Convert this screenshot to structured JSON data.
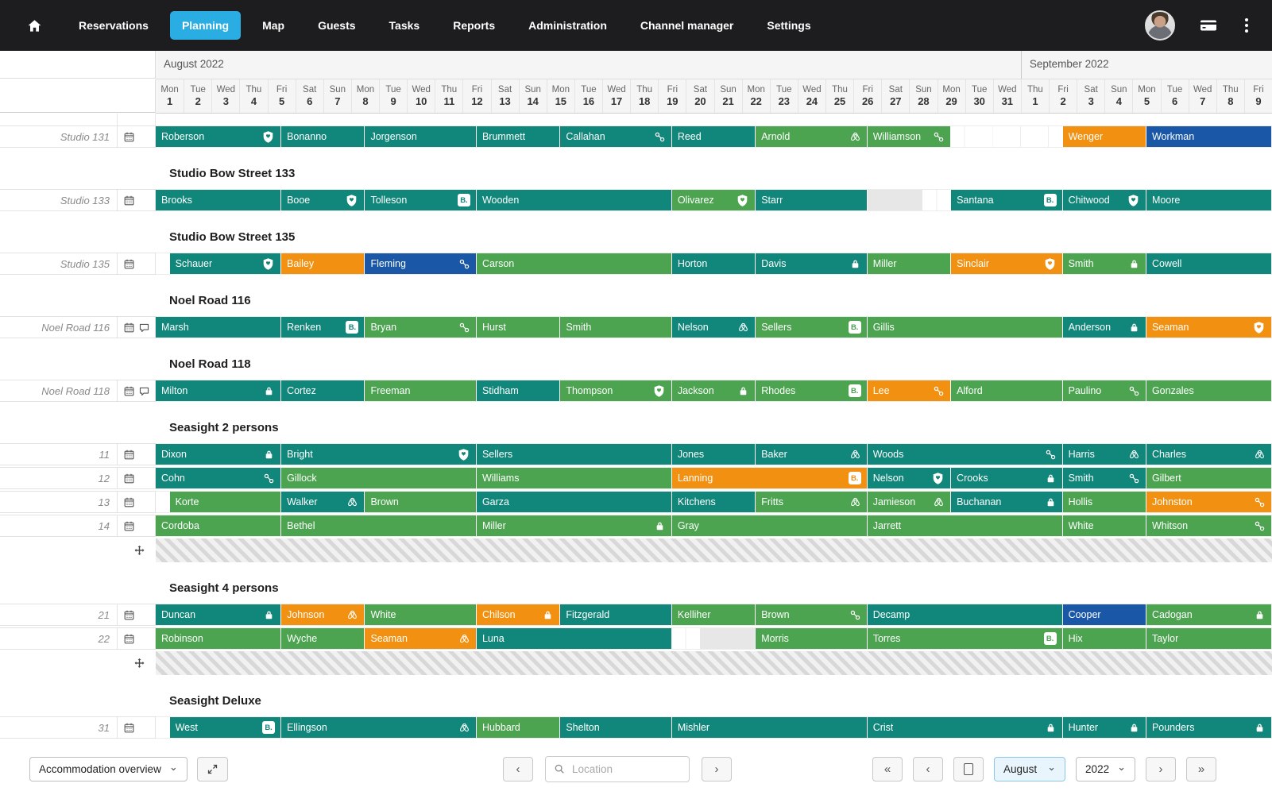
{
  "nav": {
    "items": [
      {
        "label": "Reservations",
        "active": false
      },
      {
        "label": "Planning",
        "active": true
      },
      {
        "label": "Map",
        "active": false
      },
      {
        "label": "Guests",
        "active": false
      },
      {
        "label": "Tasks",
        "active": false
      },
      {
        "label": "Reports",
        "active": false
      },
      {
        "label": "Administration",
        "active": false
      },
      {
        "label": "Channel manager",
        "active": false
      },
      {
        "label": "Settings",
        "active": false
      }
    ],
    "right_icons": [
      "user-avatar",
      "credit-card-icon",
      "kebab-menu-icon"
    ]
  },
  "colors": {
    "teal": "#11867a",
    "green": "#4ca450",
    "orange": "#f29111",
    "blue": "#1a57a6",
    "blocked": "#e7e7e7",
    "active_tab": "#29ade2",
    "navbar_bg": "#1d1d1f"
  },
  "icons": {
    "booking_badge": "B."
  },
  "calendar": {
    "months": [
      {
        "label": "August 2022",
        "days": 31
      },
      {
        "label": "September 2022",
        "days": 9
      }
    ],
    "days": [
      "Mon 1",
      "Tue 2",
      "Wed 3",
      "Thu 4",
      "Fri 5",
      "Sat 6",
      "Sun 7",
      "Mon 8",
      "Tue 9",
      "Wed 10",
      "Thu 11",
      "Fri 12",
      "Sat 13",
      "Sun 14",
      "Mon 15",
      "Tue 16",
      "Wed 17",
      "Thu 18",
      "Fri 19",
      "Sat 20",
      "Sun 21",
      "Mon 22",
      "Tue 23",
      "Wed 24",
      "Thu 25",
      "Fri 26",
      "Sat 27",
      "Sun 28",
      "Mon 29",
      "Tue 30",
      "Wed 31",
      "Thu 1",
      "Fri 2",
      "Sat 3",
      "Sun 4",
      "Mon 5",
      "Tue 6",
      "Wed 7",
      "Thu 8",
      "Fri 9"
    ]
  },
  "rows": [
    {
      "type": "spacer"
    },
    {
      "type": "unit",
      "label": "Studio 131",
      "row_icons": [
        "calendar"
      ],
      "bars": [
        [
          0,
          4.5,
          "teal",
          "Roberson",
          "shield"
        ],
        [
          4.5,
          7.5,
          "teal",
          "Bonanno",
          null
        ],
        [
          7.5,
          11.5,
          "teal",
          "Jorgenson",
          null
        ],
        [
          11.5,
          14.5,
          "teal",
          "Brummett",
          null
        ],
        [
          14.5,
          18.5,
          "teal",
          "Callahan",
          "link"
        ],
        [
          18.5,
          21.5,
          "teal",
          "Reed",
          null
        ],
        [
          21.5,
          25.5,
          "green",
          "Arnold",
          "airbnb"
        ],
        [
          25.5,
          28.5,
          "green",
          "Williamson",
          "link"
        ],
        [
          32.5,
          35.5,
          "orange",
          "Wenger",
          null
        ],
        [
          35.5,
          40,
          "blue",
          "Workman",
          null
        ]
      ]
    },
    {
      "type": "section",
      "label": "Studio Bow Street 133"
    },
    {
      "type": "unit",
      "label": "Studio 133",
      "row_icons": [
        "calendar"
      ],
      "bars": [
        [
          0,
          4.5,
          "teal",
          "Brooks",
          null
        ],
        [
          4.5,
          7.5,
          "teal",
          "Booe",
          "shield"
        ],
        [
          7.5,
          11.5,
          "teal",
          "Tolleson",
          "booking"
        ],
        [
          11.5,
          18.5,
          "teal",
          "Wooden",
          null
        ],
        [
          18.5,
          21.5,
          "green",
          "Olivarez",
          "shield"
        ],
        [
          21.5,
          25.5,
          "teal",
          "Starr",
          null
        ],
        [
          25.5,
          27.5,
          "blocked",
          "",
          null
        ],
        [
          28.5,
          32.5,
          "teal",
          "Santana",
          "booking"
        ],
        [
          32.5,
          35.5,
          "teal",
          "Chitwood",
          "shield"
        ],
        [
          35.5,
          40,
          "teal",
          "Moore",
          null
        ]
      ]
    },
    {
      "type": "section",
      "label": "Studio Bow Street 135"
    },
    {
      "type": "unit",
      "label": "Studio 135",
      "row_icons": [
        "calendar"
      ],
      "bars": [
        [
          0.5,
          4.5,
          "teal",
          "Schauer",
          "shield"
        ],
        [
          4.5,
          7.5,
          "orange",
          "Bailey",
          null
        ],
        [
          7.5,
          11.5,
          "blue",
          "Fleming",
          "link"
        ],
        [
          11.5,
          18.5,
          "green",
          "Carson",
          null
        ],
        [
          18.5,
          21.5,
          "teal",
          "Horton",
          null
        ],
        [
          21.5,
          25.5,
          "teal",
          "Davis",
          "lock"
        ],
        [
          25.5,
          28.5,
          "green",
          "Miller",
          null
        ],
        [
          28.5,
          32.5,
          "orange",
          "Sinclair",
          "shield"
        ],
        [
          32.5,
          35.5,
          "green",
          "Smith",
          "lock"
        ],
        [
          35.5,
          40,
          "teal",
          "Cowell",
          null
        ]
      ]
    },
    {
      "type": "section",
      "label": "Noel Road 116"
    },
    {
      "type": "unit",
      "label": "Noel Road 116",
      "row_icons": [
        "calendar",
        "comment"
      ],
      "bars": [
        [
          0,
          4.5,
          "teal",
          "Marsh",
          null
        ],
        [
          4.5,
          7.5,
          "teal",
          "Renken",
          "booking"
        ],
        [
          7.5,
          11.5,
          "green",
          "Bryan",
          "link"
        ],
        [
          11.5,
          14.5,
          "green",
          "Hurst",
          null
        ],
        [
          14.5,
          18.5,
          "green",
          "Smith",
          null
        ],
        [
          18.5,
          21.5,
          "teal",
          "Nelson",
          "airbnb"
        ],
        [
          21.5,
          25.5,
          "green",
          "Sellers",
          "booking"
        ],
        [
          25.5,
          32.5,
          "green",
          "Gillis",
          null
        ],
        [
          32.5,
          35.5,
          "teal",
          "Anderson",
          "lock"
        ],
        [
          35.5,
          40,
          "orange",
          "Seaman",
          "shield"
        ]
      ]
    },
    {
      "type": "section",
      "label": "Noel Road 118"
    },
    {
      "type": "unit",
      "label": "Noel Road 118",
      "row_icons": [
        "calendar",
        "comment"
      ],
      "bars": [
        [
          0,
          4.5,
          "teal",
          "Milton",
          "lock"
        ],
        [
          4.5,
          7.5,
          "teal",
          "Cortez",
          null
        ],
        [
          7.5,
          11.5,
          "green",
          "Freeman",
          null
        ],
        [
          11.5,
          14.5,
          "teal",
          "Stidham",
          null
        ],
        [
          14.5,
          18.5,
          "green",
          "Thompson",
          "shield"
        ],
        [
          18.5,
          21.5,
          "green",
          "Jackson",
          "lock"
        ],
        [
          21.5,
          25.5,
          "green",
          "Rhodes",
          "booking"
        ],
        [
          25.5,
          28.5,
          "orange",
          "Lee",
          "link"
        ],
        [
          28.5,
          32.5,
          "green",
          "Alford",
          null
        ],
        [
          32.5,
          35.5,
          "green",
          "Paulino",
          "link"
        ],
        [
          35.5,
          40,
          "green",
          "Gonzales",
          null
        ]
      ]
    },
    {
      "type": "section",
      "label": "Seasight 2 persons"
    },
    {
      "type": "unit",
      "label": "11",
      "row_icons": [
        "calendar"
      ],
      "bars": [
        [
          0,
          4.5,
          "teal",
          "Dixon",
          "lock"
        ],
        [
          4.5,
          11.5,
          "teal",
          "Bright",
          "shield"
        ],
        [
          11.5,
          18.5,
          "teal",
          "Sellers",
          null
        ],
        [
          18.5,
          21.5,
          "teal",
          "Jones",
          null
        ],
        [
          21.5,
          25.5,
          "teal",
          "Baker",
          "airbnb"
        ],
        [
          25.5,
          32.5,
          "teal",
          "Woods",
          "link"
        ],
        [
          32.5,
          35.5,
          "teal",
          "Harris",
          "airbnb"
        ],
        [
          35.5,
          40,
          "teal",
          "Charles",
          "airbnb"
        ]
      ]
    },
    {
      "type": "unit",
      "label": "12",
      "row_icons": [
        "calendar"
      ],
      "bars": [
        [
          0,
          4.5,
          "teal",
          "Cohn",
          "link"
        ],
        [
          4.5,
          11.5,
          "green",
          "Gillock",
          null
        ],
        [
          11.5,
          18.5,
          "green",
          "Williams",
          null
        ],
        [
          18.5,
          25.5,
          "orange",
          "Lanning",
          "booking"
        ],
        [
          25.5,
          28.5,
          "teal",
          "Nelson",
          "shield"
        ],
        [
          28.5,
          32.5,
          "teal",
          "Crooks",
          "lock"
        ],
        [
          32.5,
          35.5,
          "teal",
          "Smith",
          "link"
        ],
        [
          35.5,
          40,
          "green",
          "Gilbert",
          null
        ]
      ]
    },
    {
      "type": "unit",
      "label": "13",
      "row_icons": [
        "calendar"
      ],
      "bars": [
        [
          0.5,
          4.5,
          "green",
          "Korte",
          null
        ],
        [
          4.5,
          7.5,
          "teal",
          "Walker",
          "airbnb"
        ],
        [
          7.5,
          11.5,
          "green",
          "Brown",
          null
        ],
        [
          11.5,
          18.5,
          "teal",
          "Garza",
          null
        ],
        [
          18.5,
          21.5,
          "teal",
          "Kitchens",
          null
        ],
        [
          21.5,
          25.5,
          "green",
          "Fritts",
          "airbnb"
        ],
        [
          25.5,
          28.5,
          "green",
          "Jamieson",
          "airbnb"
        ],
        [
          28.5,
          32.5,
          "teal",
          "Buchanan",
          "lock"
        ],
        [
          32.5,
          35.5,
          "green",
          "Hollis",
          null
        ],
        [
          35.5,
          40,
          "orange",
          "Johnston",
          "link"
        ]
      ]
    },
    {
      "type": "unit",
      "label": "14",
      "row_icons": [
        "calendar"
      ],
      "bars": [
        [
          0,
          4.5,
          "green",
          "Cordoba",
          null
        ],
        [
          4.5,
          11.5,
          "green",
          "Bethel",
          null
        ],
        [
          11.5,
          18.5,
          "green",
          "Miller",
          "lock"
        ],
        [
          18.5,
          25.5,
          "green",
          "Gray",
          null
        ],
        [
          25.5,
          32.5,
          "green",
          "Jarrett",
          null
        ],
        [
          32.5,
          35.5,
          "green",
          "White",
          null
        ],
        [
          35.5,
          40,
          "green",
          "Whitson",
          "link"
        ]
      ]
    },
    {
      "type": "stripe"
    },
    {
      "type": "section",
      "label": "Seasight 4 persons"
    },
    {
      "type": "unit",
      "label": "21",
      "row_icons": [
        "calendar"
      ],
      "bars": [
        [
          0,
          4.5,
          "teal",
          "Duncan",
          "lock"
        ],
        [
          4.5,
          7.5,
          "orange",
          "Johnson",
          "airbnb"
        ],
        [
          7.5,
          11.5,
          "green",
          "White",
          null
        ],
        [
          11.5,
          14.5,
          "orange",
          "Chilson",
          "lock"
        ],
        [
          14.5,
          18.5,
          "teal",
          "Fitzgerald",
          null
        ],
        [
          18.5,
          21.5,
          "green",
          "Kelliher",
          null
        ],
        [
          21.5,
          25.5,
          "green",
          "Brown",
          "link"
        ],
        [
          25.5,
          32.5,
          "teal",
          "Decamp",
          null
        ],
        [
          32.5,
          35.5,
          "blue",
          "Cooper",
          null
        ],
        [
          35.5,
          40,
          "green",
          "Cadogan",
          "lock"
        ]
      ]
    },
    {
      "type": "unit",
      "label": "22",
      "row_icons": [
        "calendar"
      ],
      "bars": [
        [
          0,
          4.5,
          "green",
          "Robinson",
          null
        ],
        [
          4.5,
          7.5,
          "green",
          "Wyche",
          null
        ],
        [
          7.5,
          11.5,
          "orange",
          "Seaman",
          "airbnb"
        ],
        [
          11.5,
          18.5,
          "teal",
          "Luna",
          null
        ],
        [
          19.5,
          21.5,
          "blocked",
          "",
          null
        ],
        [
          21.5,
          25.5,
          "green",
          "Morris",
          null
        ],
        [
          25.5,
          32.5,
          "green",
          "Torres",
          "booking"
        ],
        [
          32.5,
          35.5,
          "green",
          "Hix",
          null
        ],
        [
          35.5,
          40,
          "green",
          "Taylor",
          null
        ]
      ]
    },
    {
      "type": "stripe"
    },
    {
      "type": "section",
      "label": "Seasight Deluxe"
    },
    {
      "type": "unit",
      "label": "31",
      "row_icons": [
        "calendar"
      ],
      "bars": [
        [
          0.5,
          4.5,
          "teal",
          "West",
          "booking"
        ],
        [
          4.5,
          11.5,
          "teal",
          "Ellingson",
          "airbnb"
        ],
        [
          11.5,
          14.5,
          "green",
          "Hubbard",
          null
        ],
        [
          14.5,
          18.5,
          "teal",
          "Shelton",
          null
        ],
        [
          18.5,
          25.5,
          "teal",
          "Mishler",
          null
        ],
        [
          25.5,
          32.5,
          "teal",
          "Crist",
          "lock"
        ],
        [
          32.5,
          35.5,
          "teal",
          "Hunter",
          "lock"
        ],
        [
          35.5,
          40,
          "teal",
          "Pounders",
          "lock"
        ]
      ]
    }
  ],
  "toolbar": {
    "view_select": "Accommodation overview",
    "location_placeholder": "Location",
    "month_select": "August",
    "year_select": "2022",
    "nav_icons": {
      "first": "«",
      "prev": "‹",
      "next": "›",
      "last": "»"
    }
  }
}
